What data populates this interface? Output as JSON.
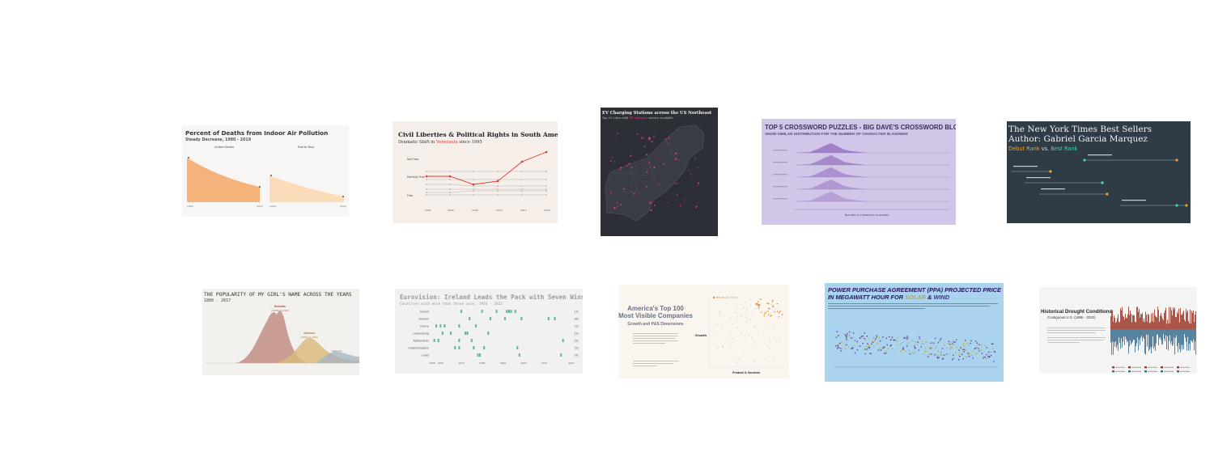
{
  "cards": [
    {
      "title": "Percent of Deaths from Indoor Air Pollution",
      "subtitle": "Steady Decrease, 1990 - 2019",
      "panels": [
        "United States",
        "Puerto Rico"
      ],
      "chart_data": {
        "type": "area",
        "title": "Percent of Deaths from Indoor Air Pollution",
        "subtitle": "Steady Decrease, 1990 - 2019",
        "facets": [
          "United States",
          "Puerto Rico"
        ],
        "x_ticks": [
          "1990",
          "2019"
        ],
        "series": [
          {
            "name": "United States",
            "x": [
              1990,
              2000,
              2010,
              2019
            ],
            "values": [
              1.0,
              0.75,
              0.5,
              0.4
            ]
          },
          {
            "name": "Puerto Rico",
            "x": [
              1990,
              2000,
              2010,
              2019
            ],
            "values": [
              0.35,
              0.25,
              0.15,
              0.1
            ]
          }
        ]
      }
    },
    {
      "title": "Civil Liberties & Political Rights in South America",
      "subtitle_pre": "Dramatic Shift in ",
      "subtitle_highlight": "Venezuela",
      "subtitle_post": " since 1995",
      "y_labels": [
        "Not Free",
        "Partially Free",
        "Free"
      ],
      "x_ticks": [
        "1995",
        "2000",
        "2005",
        "2010",
        "2015",
        "2020"
      ],
      "colors": {
        "highlight": "#e0362a",
        "others": "#a8a8a8"
      },
      "chart_data": {
        "type": "line",
        "x": [
          1995,
          2000,
          2005,
          2010,
          2015,
          2020
        ],
        "y_categories": [
          "Free",
          "Partially Free",
          "Not Free"
        ],
        "series": [
          {
            "name": "Venezuela",
            "values": [
              "Partially Free",
              "Partially Free",
              "Partially Free",
              "Partially Free",
              "Not Free",
              "Not Free"
            ]
          }
        ]
      }
    },
    {
      "title": "EV Charging Stations across the US Northeast",
      "subtitle_pre": "Top 10 cities with ",
      "subtitle_highlight": "EV chargers",
      "subtitle_post": " service available",
      "colors": {
        "background": "#2d2f36",
        "accent": "#e8397a"
      },
      "chart_data": {
        "type": "map",
        "region": "US Northeast"
      }
    },
    {
      "title": "TOP 5 CROSSWORD PUZZLES - BIG DAVE'S CROSSWORD BLOG",
      "subtitle": "SHOW SIMILAR DISTRIBUTION FOR THE NUMBER OF CHARACTER IN ANSWER",
      "xlabel": "Number of characters in answer",
      "colors": {
        "background": "#d2c6e8",
        "ridge": "#7d5a9e"
      },
      "chart_data": {
        "type": "area",
        "style": "ridgeline",
        "series_count": 5
      }
    },
    {
      "title": "The New York Times Best Sellers",
      "subtitle": "Author: Gabriel Garcia Marquez",
      "legend_debut": "Debut Rank",
      "legend_vs": " vs. ",
      "legend_best": "Best Rank",
      "colors": {
        "background": "#2f3c47",
        "debut": "#f0a31c",
        "best": "#3fd7b0"
      },
      "chart_data": {
        "type": "scatter",
        "style": "dumbbell",
        "series": [
          {
            "name": "Debut Rank"
          },
          {
            "name": "Best Rank"
          }
        ],
        "rows": 5
      }
    },
    {
      "title": "THE POPULARITY OF MY GIRL'S NAME ACROSS THE YEARS",
      "subtitle": "1880 - 2017",
      "annotation_1": "Brenda",
      "annotation_1_years": "(1959-14,224)",
      "annotation_2": "Andrea",
      "annotation_2_years": "(1985-11,486)",
      "annotation_3": "Gabriela",
      "colors": {
        "brenda": "#c08f84",
        "andrea": "#d9b97a",
        "gabriela": "#a3b3c0"
      },
      "chart_data": {
        "type": "area",
        "series": [
          {
            "name": "Brenda",
            "x": [
              1959
            ],
            "values": [
              14224
            ]
          },
          {
            "name": "Andrea",
            "x": [
              1985
            ],
            "values": [
              11486
            ]
          },
          {
            "name": "Gabriela",
            "x": [],
            "values": []
          }
        ]
      }
    },
    {
      "title": "Eurovision: Ireland Leads the Pack with Seven Wins",
      "subtitle": "Countries with more than three wins, 1956 - 2022",
      "countries": [
        "Ireland",
        "Sweden",
        "France",
        "Luxembourg",
        "Netherlands",
        "United Kingdom",
        "Israel"
      ],
      "wins": [
        "[7]",
        "[6]",
        "[5]",
        "[5]",
        "[5]",
        "[5]",
        "[4]"
      ],
      "x_ticks": [
        "1956",
        "1960",
        "1970",
        "1980",
        "1990",
        "2000",
        "2010",
        "2023"
      ],
      "colors": {
        "mark": "#5fb49c"
      },
      "chart_data": {
        "type": "scatter",
        "categories": [
          "Ireland",
          "Sweden",
          "France",
          "Luxembourg",
          "Netherlands",
          "United Kingdom",
          "Israel"
        ],
        "values": [
          7,
          6,
          5,
          5,
          5,
          5,
          4
        ],
        "x_range": [
          1956,
          2023
        ]
      }
    },
    {
      "title_line1": "America's Top 100",
      "title_line2": "Most Visible Companies",
      "subtitle": "Growth and P&S Dimensions",
      "legend_1": "Result",
      "legend_2": "Others",
      "label_growth": "Growth",
      "label_ps": "Product & Services",
      "colors": {
        "accent": "#e08a2c",
        "background": "#faf6ef"
      },
      "chart_data": {
        "type": "scatter",
        "series": [
          {
            "name": "Result"
          },
          {
            "name": "Others"
          }
        ]
      }
    },
    {
      "title_line1": "POWER PURCHASE AGREEMENT (PPA) PROJECTED PRICE",
      "title_line2_pre": "IN MEGAWATT HOUR FOR ",
      "title_line2_solar": "SOLAR",
      "title_line2_amp": " & ",
      "title_line2_wind": "WIND",
      "colors": {
        "background": "#a9d3ee",
        "solar": "#c8a32b",
        "wind": "#4b2a8c"
      },
      "chart_data": {
        "type": "scatter",
        "series": [
          {
            "name": "SOLAR"
          },
          {
            "name": "WIND"
          }
        ]
      }
    },
    {
      "title": "Historical Drought Conditions",
      "subtitle": "Contiguous U.S. (1895 - 2022)",
      "colors": {
        "dry": "#9c3b2a",
        "wet": "#3c6f8e"
      },
      "chart_data": {
        "type": "area",
        "x_range": [
          1895,
          2022
        ],
        "series": [
          {
            "name": "Dry"
          },
          {
            "name": "Wet"
          }
        ]
      }
    }
  ]
}
